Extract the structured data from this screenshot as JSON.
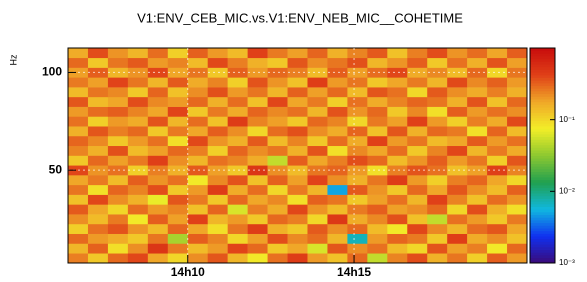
{
  "chart_data": {
    "type": "heatmap",
    "title": "V1:ENV_CEB_MIC.vs.V1:ENV_NEB_MIC__COHETIME",
    "y_label": "Hz",
    "x": [
      6.7,
      7.3,
      7.9,
      8.5,
      9.1,
      9.7,
      10.3,
      10.9,
      11.5,
      12.1,
      12.7,
      13.3,
      13.9,
      14.5,
      15.1,
      15.7,
      16.3,
      16.9,
      17.5,
      18.1,
      18.7,
      19.3,
      19.9
    ],
    "y": [
      5,
      10,
      15,
      20,
      25,
      30,
      35,
      40,
      45,
      50,
      55,
      60,
      65,
      70,
      75,
      80,
      85,
      90,
      95,
      100,
      105,
      110
    ],
    "xlim": [
      6.4,
      20.2
    ],
    "ylim": [
      2.5,
      112.5
    ],
    "xticks": [
      {
        "value": 10,
        "label": "14h10"
      },
      {
        "value": 15,
        "label": "14h15"
      }
    ],
    "yticks": [
      50,
      100
    ],
    "zlim": [
      0.001,
      1
    ],
    "zlog": true,
    "zticks": [
      {
        "value": 0.001,
        "label": "10⁻³"
      },
      {
        "value": 0.01,
        "label": "10⁻²"
      },
      {
        "value": 0.1,
        "label": "10⁻¹"
      }
    ],
    "colormap": [
      "#3b0a78",
      "#1030f0",
      "#10b8e0",
      "#20a050",
      "#8cc830",
      "#f2ee28",
      "#f0a828",
      "#e04018",
      "#c80c0c"
    ],
    "grid": true,
    "z": [
      [
        0.25,
        0.12,
        0.3,
        0.4,
        0.18,
        0.1,
        0.22,
        0.35,
        0.15,
        0.08,
        0.28,
        0.45,
        0.2,
        0.13,
        0.3,
        0.05,
        0.24,
        0.38,
        0.16,
        0.27,
        0.11,
        0.33,
        0.2
      ],
      [
        0.15,
        0.32,
        0.09,
        0.22,
        0.5,
        0.26,
        0.14,
        0.2,
        0.41,
        0.3,
        0.12,
        0.18,
        0.06,
        0.35,
        0.22,
        0.28,
        0.14,
        0.1,
        0.36,
        0.19,
        0.25,
        0.08,
        0.3
      ],
      [
        0.3,
        0.2,
        0.17,
        0.12,
        0.27,
        0.04,
        0.33,
        0.24,
        0.1,
        0.19,
        0.38,
        0.23,
        0.29,
        0.15,
        0.007,
        0.2,
        0.31,
        0.26,
        0.12,
        0.44,
        0.17,
        0.22,
        0.13
      ],
      [
        0.11,
        0.28,
        0.36,
        0.21,
        0.14,
        0.31,
        0.18,
        0.09,
        0.27,
        0.45,
        0.16,
        0.12,
        0.34,
        0.22,
        0.3,
        0.14,
        0.08,
        0.4,
        0.23,
        0.15,
        0.29,
        0.35,
        0.18
      ],
      [
        0.22,
        0.14,
        0.26,
        0.08,
        0.33,
        0.19,
        0.42,
        0.15,
        0.2,
        0.12,
        0.3,
        0.25,
        0.1,
        0.48,
        0.17,
        0.23,
        0.37,
        0.13,
        0.05,
        0.28,
        0.2,
        0.12,
        0.26
      ],
      [
        0.34,
        0.18,
        0.1,
        0.29,
        0.2,
        0.24,
        0.13,
        0.31,
        0.06,
        0.25,
        0.17,
        0.4,
        0.21,
        0.14,
        0.26,
        0.33,
        0.19,
        0.22,
        0.3,
        0.1,
        0.38,
        0.16,
        0.09
      ],
      [
        0.13,
        0.4,
        0.22,
        0.16,
        0.07,
        0.35,
        0.26,
        0.12,
        0.3,
        0.18,
        0.23,
        0.09,
        0.32,
        0.27,
        0.12,
        0.19,
        0.28,
        0.15,
        0.42,
        0.24,
        0.13,
        0.29,
        0.21
      ],
      [
        0.27,
        0.09,
        0.31,
        0.24,
        0.38,
        0.12,
        0.2,
        0.46,
        0.17,
        0.29,
        0.1,
        0.26,
        0.15,
        0.005,
        0.34,
        0.21,
        0.12,
        0.3,
        0.18,
        0.35,
        0.22,
        0.14,
        0.32
      ],
      [
        0.18,
        0.26,
        0.14,
        0.33,
        0.21,
        0.28,
        0.08,
        0.23,
        0.36,
        0.13,
        0.32,
        0.19,
        0.41,
        0.22,
        0.16,
        0.27,
        0.45,
        0.2,
        0.11,
        0.25,
        0.31,
        0.18,
        0.1
      ],
      [
        0.4,
        0.21,
        0.28,
        0.11,
        0.25,
        0.16,
        0.34,
        0.19,
        0.12,
        0.5,
        0.22,
        0.14,
        0.27,
        0.31,
        0.2,
        0.09,
        0.25,
        0.36,
        0.28,
        0.13,
        0.19,
        0.43,
        0.24
      ],
      [
        0.12,
        0.3,
        0.19,
        0.26,
        0.43,
        0.22,
        0.15,
        0.28,
        0.24,
        0.17,
        0.05,
        0.33,
        0.18,
        0.25,
        0.38,
        0.3,
        0.14,
        0.21,
        0.33,
        0.2,
        0.27,
        0.11,
        0.35
      ],
      [
        0.24,
        0.16,
        0.37,
        0.14,
        0.19,
        0.3,
        0.25,
        0.11,
        0.31,
        0.22,
        0.27,
        0.16,
        0.36,
        0.09,
        0.23,
        0.18,
        0.29,
        0.12,
        0.24,
        0.4,
        0.15,
        0.26,
        0.17
      ],
      [
        0.31,
        0.23,
        0.12,
        0.2,
        0.28,
        0.09,
        0.39,
        0.21,
        0.16,
        0.34,
        0.14,
        0.24,
        0.12,
        0.29,
        0.17,
        0.42,
        0.2,
        0.27,
        0.14,
        0.18,
        0.34,
        0.2,
        0.28
      ],
      [
        0.16,
        0.35,
        0.25,
        0.3,
        0.12,
        0.26,
        0.18,
        0.33,
        0.22,
        0.1,
        0.29,
        0.37,
        0.22,
        0.17,
        0.31,
        0.13,
        0.35,
        0.16,
        0.3,
        0.26,
        0.09,
        0.31,
        0.14
      ],
      [
        0.28,
        0.11,
        0.2,
        0.17,
        0.36,
        0.15,
        0.29,
        0.13,
        0.45,
        0.24,
        0.19,
        0.12,
        0.3,
        0.24,
        0.1,
        0.26,
        0.19,
        0.42,
        0.2,
        0.11,
        0.25,
        0.17,
        0.39
      ],
      [
        0.2,
        0.29,
        0.33,
        0.24,
        0.18,
        0.41,
        0.12,
        0.26,
        0.17,
        0.31,
        0.23,
        0.28,
        0.15,
        0.36,
        0.21,
        0.3,
        0.12,
        0.23,
        0.09,
        0.33,
        0.2,
        0.28,
        0.22
      ],
      [
        0.35,
        0.14,
        0.18,
        0.38,
        0.23,
        0.2,
        0.3,
        0.16,
        0.29,
        0.13,
        0.4,
        0.18,
        0.26,
        0.11,
        0.28,
        0.17,
        0.24,
        0.31,
        0.27,
        0.16,
        0.36,
        0.13,
        0.3
      ],
      [
        0.14,
        0.27,
        0.23,
        0.12,
        0.31,
        0.13,
        0.22,
        0.37,
        0.2,
        0.27,
        0.15,
        0.32,
        0.19,
        0.3,
        0.14,
        0.35,
        0.28,
        0.1,
        0.34,
        0.22,
        0.17,
        0.25,
        0.16
      ],
      [
        0.26,
        0.19,
        0.41,
        0.27,
        0.15,
        0.34,
        0.17,
        0.24,
        0.11,
        0.36,
        0.21,
        0.13,
        0.44,
        0.2,
        0.27,
        0.12,
        0.18,
        0.26,
        0.15,
        0.39,
        0.23,
        0.32,
        0.2
      ],
      [
        0.19,
        0.33,
        0.15,
        0.21,
        0.4,
        0.18,
        0.27,
        0.12,
        0.32,
        0.2,
        0.3,
        0.25,
        0.14,
        0.33,
        0.19,
        0.29,
        0.4,
        0.17,
        0.23,
        0.14,
        0.3,
        0.1,
        0.27
      ],
      [
        0.3,
        0.12,
        0.27,
        0.34,
        0.2,
        0.24,
        0.14,
        0.39,
        0.25,
        0.16,
        0.12,
        0.35,
        0.22,
        0.27,
        0.37,
        0.15,
        0.21,
        0.33,
        0.12,
        0.28,
        0.16,
        0.36,
        0.19
      ],
      [
        0.17,
        0.38,
        0.21,
        0.15,
        0.29,
        0.11,
        0.32,
        0.2,
        0.14,
        0.42,
        0.26,
        0.19,
        0.31,
        0.16,
        0.24,
        0.34,
        0.13,
        0.25,
        0.38,
        0.21,
        0.29,
        0.18,
        0.33
      ]
    ]
  }
}
